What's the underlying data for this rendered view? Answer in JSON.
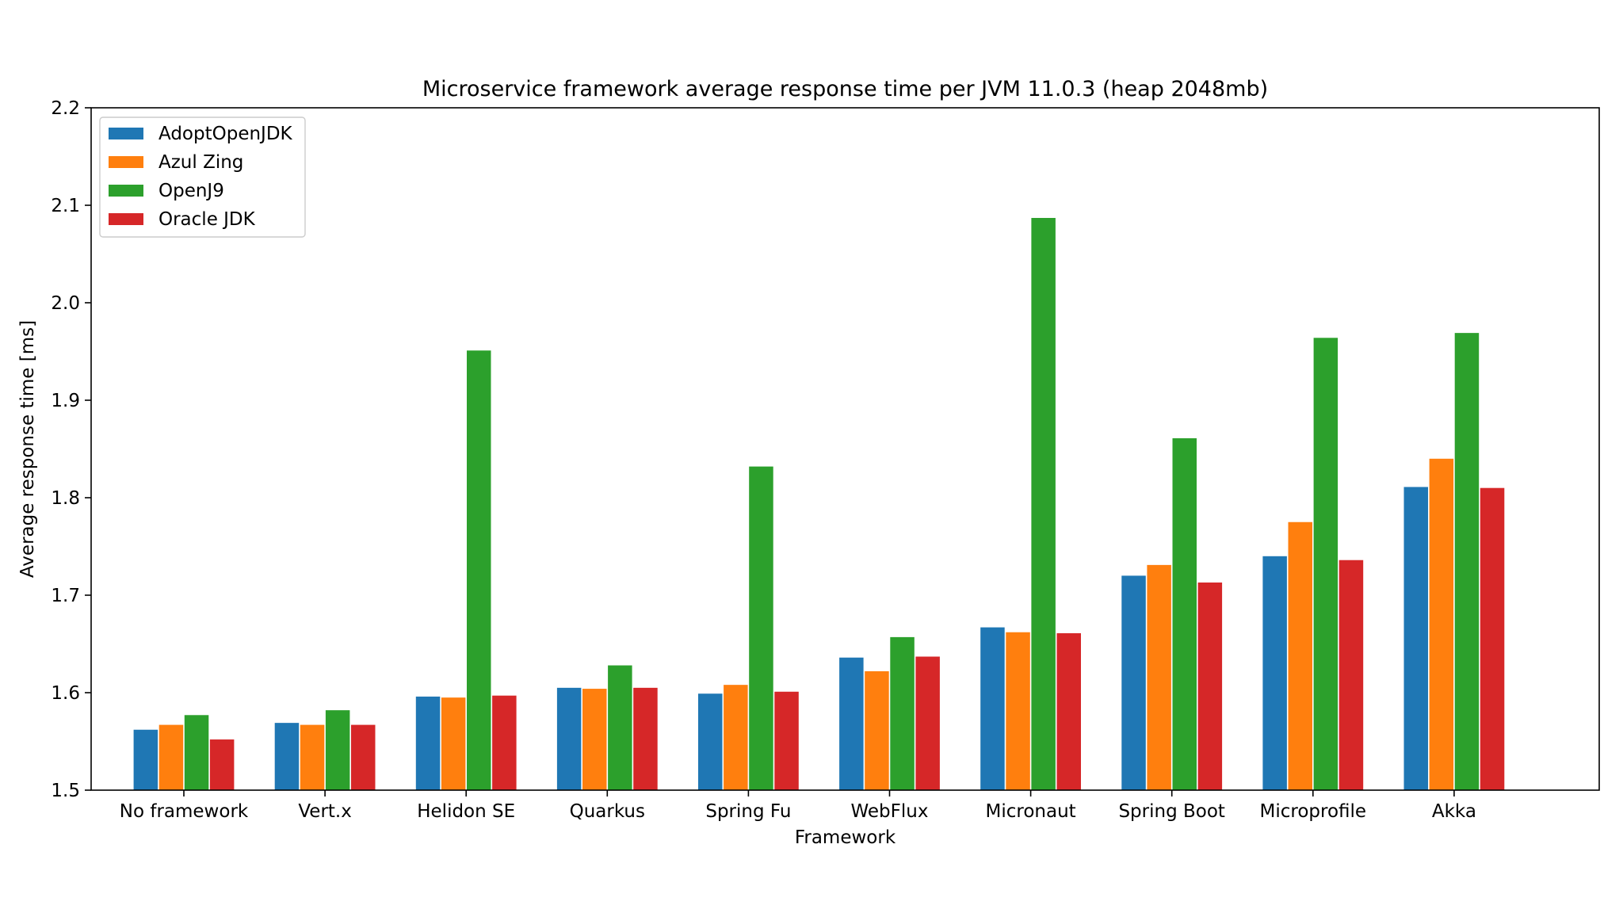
{
  "chart_data": {
    "type": "bar",
    "title": "Microservice framework average response time per JVM 11.0.3 (heap 2048mb)",
    "xlabel": "Framework",
    "ylabel": "Average response time [ms]",
    "ylim": [
      1.5,
      2.2
    ],
    "yticks": [
      "1.5",
      "1.6",
      "1.7",
      "1.8",
      "1.9",
      "2.0",
      "2.1",
      "2.2"
    ],
    "legend_position": "top-left",
    "grid": false,
    "categories": [
      "No framework",
      "Vert.x",
      "Helidon SE",
      "Quarkus",
      "Spring Fu",
      "WebFlux",
      "Micronaut",
      "Spring Boot",
      "Microprofile",
      "Akka"
    ],
    "series": [
      {
        "name": "AdoptOpenJDK",
        "color": "#1f77b4",
        "values": [
          1.562,
          1.569,
          1.596,
          1.605,
          1.599,
          1.636,
          1.667,
          1.72,
          1.74,
          1.811
        ]
      },
      {
        "name": "Azul Zing",
        "color": "#ff7f0e",
        "values": [
          1.567,
          1.567,
          1.595,
          1.604,
          1.608,
          1.622,
          1.662,
          1.731,
          1.775,
          1.84
        ]
      },
      {
        "name": "OpenJ9",
        "color": "#2ca02c",
        "values": [
          1.577,
          1.582,
          1.951,
          1.628,
          1.832,
          1.657,
          2.087,
          1.861,
          1.964,
          1.969
        ]
      },
      {
        "name": "Oracle JDK",
        "color": "#d62728",
        "values": [
          1.552,
          1.567,
          1.597,
          1.605,
          1.601,
          1.637,
          1.661,
          1.713,
          1.736,
          1.81
        ]
      }
    ]
  }
}
